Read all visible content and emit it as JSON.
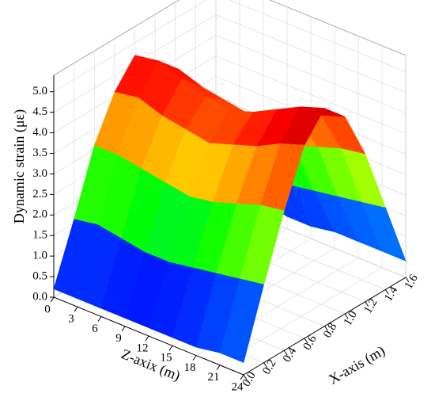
{
  "chart_data": {
    "type": "surface",
    "y_label": "Dynamic strain (με)",
    "z_label": "Z-axix (m)",
    "x_label": "X-axis (m)",
    "z": [
      0,
      3,
      6,
      9,
      12,
      15,
      18,
      21,
      24
    ],
    "x": [
      0,
      0.2,
      0.4,
      0.6,
      0.8,
      1.0,
      1.2,
      1.4,
      1.6
    ],
    "values": [
      [
        0.2,
        1.6,
        3.1,
        4.1,
        4.7,
        4.2,
        3.2,
        1.8,
        0.4
      ],
      [
        0.2,
        1.7,
        3.1,
        4.2,
        4.8,
        4.3,
        3.3,
        1.8,
        0.4
      ],
      [
        0.2,
        1.6,
        3.0,
        4.0,
        4.6,
        4.1,
        3.1,
        1.7,
        0.4
      ],
      [
        0.2,
        1.5,
        2.9,
        3.9,
        4.4,
        4.0,
        3.0,
        1.7,
        0.3
      ],
      [
        0.2,
        1.5,
        2.8,
        3.8,
        4.3,
        3.9,
        2.9,
        1.6,
        0.3
      ],
      [
        0.2,
        1.6,
        2.9,
        4.0,
        4.5,
        4.1,
        3.1,
        1.7,
        0.4
      ],
      [
        0.2,
        1.7,
        3.1,
        4.2,
        4.8,
        4.3,
        3.3,
        1.8,
        0.4
      ],
      [
        0.3,
        1.8,
        3.3,
        4.5,
        5.1,
        4.6,
        3.5,
        1.9,
        0.4
      ],
      [
        0.3,
        1.9,
        3.4,
        4.7,
        5.3,
        4.8,
        3.6,
        2.0,
        0.4
      ]
    ],
    "zlim": [
      0,
      24
    ],
    "zticks": [
      0,
      3,
      6,
      9,
      12,
      15,
      18,
      21,
      24
    ],
    "xlim": [
      0,
      1.6
    ],
    "xticks": [
      {
        "value": 0,
        "label": "0.0"
      },
      0.2,
      0.4,
      0.6,
      0.8,
      {
        "value": 1,
        "label": "1.0"
      },
      1.2,
      1.4,
      1.6
    ],
    "ylim": [
      0,
      5.4
    ],
    "yticks": [
      {
        "value": 0,
        "label": "0.0"
      },
      0.5,
      {
        "value": 1,
        "label": "1.0"
      },
      1.5,
      {
        "value": 2,
        "label": "2.0"
      },
      2.5,
      {
        "value": 3,
        "label": "3.0"
      },
      3.5,
      {
        "value": 4,
        "label": "4.0"
      },
      4.5,
      {
        "value": 5,
        "label": "5.0"
      }
    ],
    "grid": true,
    "colormap": [
      "#8000ff",
      "#0000ff",
      "#00c8ff",
      "#00ff00",
      "#ffff00",
      "#ff8000",
      "#ff0000",
      "#c00000"
    ]
  }
}
